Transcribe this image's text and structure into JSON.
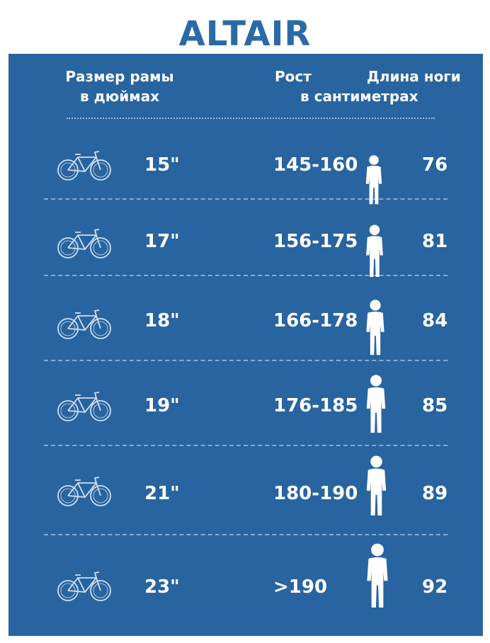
{
  "brand": "ALTAIR",
  "headers": {
    "frame_line1": "Размер рамы",
    "frame_line2": "в дюймах",
    "height_line1": "Рост",
    "height_line2": "в сантиметрах",
    "leg": "Длина ноги"
  },
  "colors": {
    "brand": "#2a6aa8",
    "panel": "#2864a0",
    "text": "#ffffff"
  },
  "rows": [
    {
      "size": "15\"",
      "height": "145-160",
      "leg": "76",
      "bike_icon": "bicycle-icon",
      "person_icon": "person-icon"
    },
    {
      "size": "17\"",
      "height": "156-175",
      "leg": "81",
      "bike_icon": "bicycle-icon",
      "person_icon": "person-icon"
    },
    {
      "size": "18\"",
      "height": "166-178",
      "leg": "84",
      "bike_icon": "bicycle-icon",
      "person_icon": "person-icon"
    },
    {
      "size": "19\"",
      "height": "176-185",
      "leg": "85",
      "bike_icon": "bicycle-icon",
      "person_icon": "person-icon"
    },
    {
      "size": "21\"",
      "height": "180-190",
      "leg": "89",
      "bike_icon": "bicycle-icon",
      "person_icon": "person-icon"
    },
    {
      "size": "23\"",
      "height": ">190",
      "leg": "92",
      "bike_icon": "bicycle-icon",
      "person_icon": "person-icon"
    }
  ]
}
